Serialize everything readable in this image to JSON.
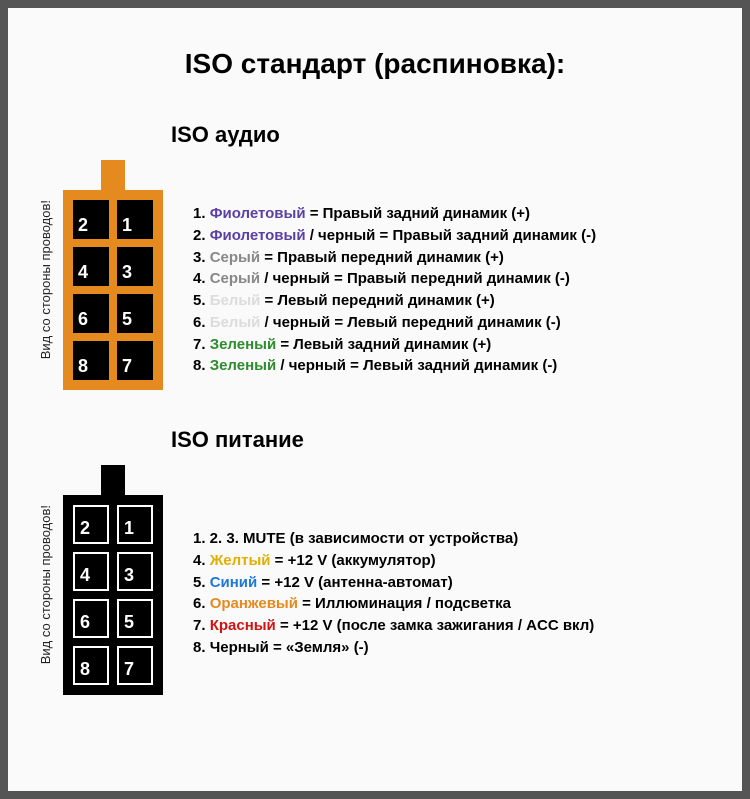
{
  "title": "ISO стандарт (распиновка):",
  "side_label": "Вид со стороны проводов!",
  "colors": {
    "violet": "#5b3fa3",
    "grey": "#888888",
    "white": "#dcdcdc",
    "green": "#2e8b2e",
    "yellow": "#e0b000",
    "blue": "#1e78d8",
    "orange": "#e58a1f",
    "red": "#d01414",
    "black": "#000000"
  },
  "audio": {
    "title": "ISO аудио",
    "connector_color": "#e58a1f",
    "pin_label_color": "#ffffff",
    "pin_bg": "#000000",
    "pin_order": [
      "2",
      "1",
      "4",
      "3",
      "6",
      "5",
      "8",
      "7"
    ],
    "rows": [
      {
        "num": "1.",
        "parts": [
          {
            "t": "Фиолетовый",
            "c": "violet"
          },
          {
            "t": " = Правый задний динамик (+)"
          }
        ]
      },
      {
        "num": "2.",
        "parts": [
          {
            "t": "Фиолетовый",
            "c": "violet"
          },
          {
            "t": " / черный = Правый задний динамик (-)"
          }
        ]
      },
      {
        "num": "3.",
        "parts": [
          {
            "t": "Серый",
            "c": "grey"
          },
          {
            "t": " = Правый передний динамик (+)"
          }
        ]
      },
      {
        "num": "4.",
        "parts": [
          {
            "t": "Серый",
            "c": "grey"
          },
          {
            "t": " / черный = Правый передний динамик (-)"
          }
        ]
      },
      {
        "num": "5.",
        "parts": [
          {
            "t": "Белый",
            "c": "white"
          },
          {
            "t": " = Левый передний динамик (+)"
          }
        ]
      },
      {
        "num": "6.",
        "parts": [
          {
            "t": "Белый",
            "c": "white"
          },
          {
            "t": " / черный = Левый передний динамик (-)"
          }
        ]
      },
      {
        "num": "7.",
        "parts": [
          {
            "t": "Зеленый",
            "c": "green"
          },
          {
            "t": " = Левый задний динамик (+)"
          }
        ]
      },
      {
        "num": "8.",
        "parts": [
          {
            "t": "Зеленый",
            "c": "green"
          },
          {
            "t": " / черный = Левый задний динамик (-)"
          }
        ]
      }
    ]
  },
  "power": {
    "title": "ISO питание",
    "connector_color": "#000000",
    "pin_label_color": "#ffffff",
    "pin_bg": "#333333",
    "pin_order": [
      "2",
      "1",
      "4",
      "3",
      "6",
      "5",
      "8",
      "7"
    ],
    "pin_border_color": "#ffffff",
    "rows": [
      {
        "num": "1. 2. 3.",
        "parts": [
          {
            "t": "  MUTE (в зависимости от устройства)"
          }
        ]
      },
      {
        "num": "4.",
        "parts": [
          {
            "t": "Желтый",
            "c": "yellow"
          },
          {
            "t": " = +12 V (аккумулятор)"
          }
        ]
      },
      {
        "num": "5.",
        "parts": [
          {
            "t": "Синий",
            "c": "blue"
          },
          {
            "t": " = +12 V (антенна-автомат)"
          }
        ]
      },
      {
        "num": "6.",
        "parts": [
          {
            "t": "Оранжевый",
            "c": "orange"
          },
          {
            "t": " = Иллюминация / подсветка"
          }
        ]
      },
      {
        "num": "7.",
        "parts": [
          {
            "t": "Красный",
            "c": "red"
          },
          {
            "t": " = +12 V (после замка зажигания / ACC вкл)"
          }
        ]
      },
      {
        "num": "8.",
        "parts": [
          {
            "t": "Черный = «Земля» (-)"
          }
        ]
      }
    ]
  }
}
